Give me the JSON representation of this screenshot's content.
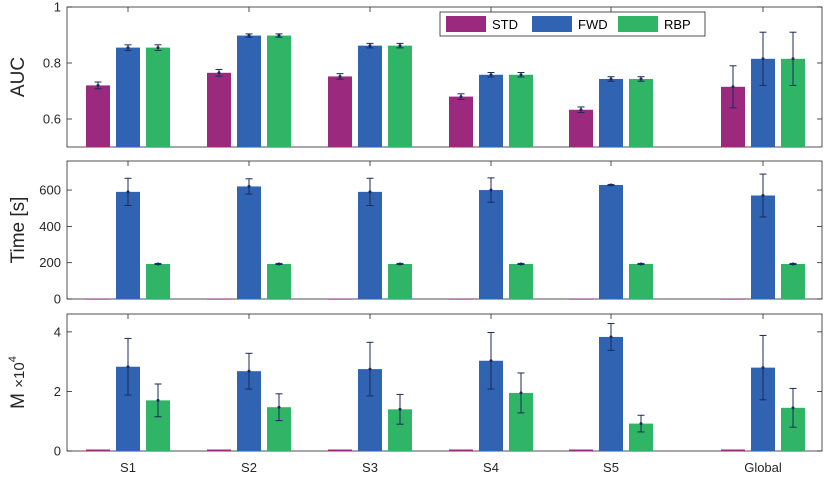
{
  "legend": [
    {
      "label": "STD",
      "color": "#9b2a7f"
    },
    {
      "label": "FWD",
      "color": "#3163b3"
    },
    {
      "label": "RBP",
      "color": "#2fb565"
    }
  ],
  "chart_data": [
    {
      "type": "bar",
      "ylabel": "AUC",
      "ylim": [
        0.5,
        1.0
      ],
      "yticks": [
        0.6,
        0.8,
        1
      ],
      "ytick_labels": [
        "0.6",
        "0.8",
        "1"
      ],
      "categories": [
        "S1",
        "S2",
        "S3",
        "S4",
        "S5",
        "Global"
      ],
      "series": [
        {
          "name": "STD",
          "values": [
            0.72,
            0.765,
            0.752,
            0.68,
            0.633,
            0.715
          ],
          "err": [
            0.012,
            0.012,
            0.01,
            0.01,
            0.01,
            0.075
          ]
        },
        {
          "name": "FWD",
          "values": [
            0.855,
            0.898,
            0.862,
            0.758,
            0.743,
            0.815
          ],
          "err": [
            0.01,
            0.006,
            0.008,
            0.008,
            0.008,
            0.095
          ]
        },
        {
          "name": "RBP",
          "values": [
            0.855,
            0.898,
            0.862,
            0.758,
            0.743,
            0.815
          ],
          "err": [
            0.01,
            0.006,
            0.008,
            0.008,
            0.008,
            0.095
          ]
        }
      ],
      "show_legend": true,
      "legend_placement": "top-right"
    },
    {
      "type": "bar",
      "ylabel": "Time [s]",
      "ylim": [
        0,
        760
      ],
      "yticks": [
        0,
        200,
        400,
        600
      ],
      "ytick_labels": [
        "0",
        "200",
        "400",
        "600"
      ],
      "categories": [
        "S1",
        "S2",
        "S3",
        "S4",
        "S5",
        "Global"
      ],
      "series": [
        {
          "name": "STD",
          "values": [
            2,
            2,
            2,
            2,
            2,
            2
          ],
          "err": [
            0,
            0,
            0,
            0,
            0,
            0
          ]
        },
        {
          "name": "FWD",
          "values": [
            590,
            620,
            590,
            600,
            628,
            570
          ],
          "err": [
            75,
            42,
            75,
            67,
            3,
            118
          ]
        },
        {
          "name": "RBP",
          "values": [
            193,
            193,
            193,
            193,
            193,
            193
          ],
          "err": [
            3,
            3,
            3,
            3,
            3,
            3
          ]
        }
      ],
      "show_legend": false
    },
    {
      "type": "bar",
      "ylabel": "M",
      "ylabel_suffix": "×10",
      "ylabel_exponent": "4",
      "ylim": [
        0,
        4.6
      ],
      "yticks": [
        0,
        2,
        4
      ],
      "ytick_labels": [
        "0",
        "2",
        "4"
      ],
      "categories": [
        "S1",
        "S2",
        "S3",
        "S4",
        "S5",
        "Global"
      ],
      "series": [
        {
          "name": "STD",
          "values": [
            0.05,
            0.05,
            0.05,
            0.05,
            0.05,
            0.05
          ],
          "err": [
            0,
            0,
            0,
            0,
            0,
            0
          ]
        },
        {
          "name": "FWD",
          "values": [
            2.83,
            2.68,
            2.75,
            3.03,
            3.83,
            2.8
          ],
          "err": [
            0.95,
            0.6,
            0.9,
            0.95,
            0.45,
            1.08
          ]
        },
        {
          "name": "RBP",
          "values": [
            1.7,
            1.47,
            1.4,
            1.95,
            0.92,
            1.45
          ],
          "err": [
            0.55,
            0.45,
            0.5,
            0.67,
            0.28,
            0.65
          ]
        }
      ],
      "show_legend": false,
      "show_xlabels": true
    }
  ]
}
